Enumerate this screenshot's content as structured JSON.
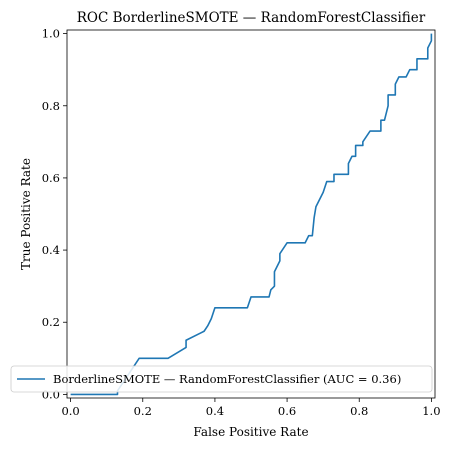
{
  "chart_data": {
    "type": "line",
    "title": "ROC BorderlineSMOTE — RandomForestClassifier",
    "xlabel": "False Positive Rate",
    "ylabel": "True Positive Rate",
    "xlim": [
      -0.01,
      1.01
    ],
    "ylim": [
      -0.01,
      1.01
    ],
    "xticks": [
      0.0,
      0.2,
      0.4,
      0.6,
      0.8,
      1.0
    ],
    "yticks": [
      0.0,
      0.2,
      0.4,
      0.6,
      0.8,
      1.0
    ],
    "xtick_labels": [
      "0.0",
      "0.2",
      "0.4",
      "0.6",
      "0.8",
      "1.0"
    ],
    "ytick_labels": [
      "0.0",
      "0.2",
      "0.4",
      "0.6",
      "0.8",
      "1.0"
    ],
    "grid": false,
    "legend_position": "lower-right",
    "series": [
      {
        "name": "BorderlineSMOTE — RandomForestClassifier (AUC = 0.36)",
        "color": "#1f77b4",
        "points": [
          [
            0.0,
            0.0
          ],
          [
            0.13,
            0.0
          ],
          [
            0.13,
            0.01
          ],
          [
            0.17,
            0.07
          ],
          [
            0.19,
            0.1
          ],
          [
            0.27,
            0.1
          ],
          [
            0.32,
            0.13
          ],
          [
            0.32,
            0.15
          ],
          [
            0.36,
            0.17
          ],
          [
            0.37,
            0.175
          ],
          [
            0.38,
            0.19
          ],
          [
            0.39,
            0.21
          ],
          [
            0.4,
            0.24
          ],
          [
            0.49,
            0.24
          ],
          [
            0.5,
            0.27
          ],
          [
            0.55,
            0.27
          ],
          [
            0.555,
            0.29
          ],
          [
            0.565,
            0.3
          ],
          [
            0.565,
            0.34
          ],
          [
            0.58,
            0.37
          ],
          [
            0.58,
            0.39
          ],
          [
            0.6,
            0.42
          ],
          [
            0.65,
            0.42
          ],
          [
            0.66,
            0.44
          ],
          [
            0.67,
            0.44
          ],
          [
            0.675,
            0.49
          ],
          [
            0.68,
            0.52
          ],
          [
            0.7,
            0.56
          ],
          [
            0.71,
            0.59
          ],
          [
            0.73,
            0.59
          ],
          [
            0.73,
            0.61
          ],
          [
            0.77,
            0.61
          ],
          [
            0.77,
            0.64
          ],
          [
            0.78,
            0.66
          ],
          [
            0.79,
            0.66
          ],
          [
            0.79,
            0.69
          ],
          [
            0.81,
            0.69
          ],
          [
            0.81,
            0.7
          ],
          [
            0.83,
            0.73
          ],
          [
            0.86,
            0.73
          ],
          [
            0.86,
            0.76
          ],
          [
            0.87,
            0.76
          ],
          [
            0.88,
            0.8
          ],
          [
            0.88,
            0.83
          ],
          [
            0.9,
            0.83
          ],
          [
            0.9,
            0.86
          ],
          [
            0.91,
            0.88
          ],
          [
            0.93,
            0.88
          ],
          [
            0.94,
            0.9
          ],
          [
            0.96,
            0.9
          ],
          [
            0.96,
            0.93
          ],
          [
            0.99,
            0.93
          ],
          [
            0.99,
            0.96
          ],
          [
            1.0,
            0.98
          ],
          [
            1.0,
            1.0
          ]
        ]
      }
    ]
  }
}
